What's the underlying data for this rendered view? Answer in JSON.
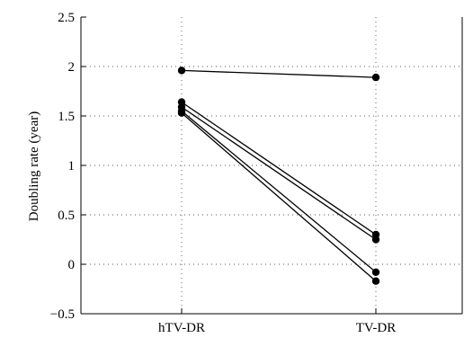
{
  "chart_data": {
    "type": "line",
    "title": "",
    "xlabel": "",
    "ylabel": "Doubling rate (year)",
    "categories": [
      "hTV-DR",
      "TV-DR"
    ],
    "ylim": [
      -0.5,
      2.5
    ],
    "yticks": [
      -0.5,
      0,
      0.5,
      1,
      1.5,
      2,
      2.5
    ],
    "ytick_labels": [
      "−0.5",
      "0",
      "0.5",
      "1",
      "1.5",
      "2",
      "2.5"
    ],
    "grid": true,
    "series": [
      {
        "values": [
          1.96,
          1.89
        ]
      },
      {
        "values": [
          1.64,
          0.3
        ]
      },
      {
        "values": [
          1.59,
          0.25
        ]
      },
      {
        "values": [
          1.55,
          -0.08
        ]
      },
      {
        "values": [
          1.53,
          -0.17
        ]
      }
    ],
    "colors": {
      "line": "#000000",
      "marker": "#000000",
      "grid": "#555555"
    }
  }
}
